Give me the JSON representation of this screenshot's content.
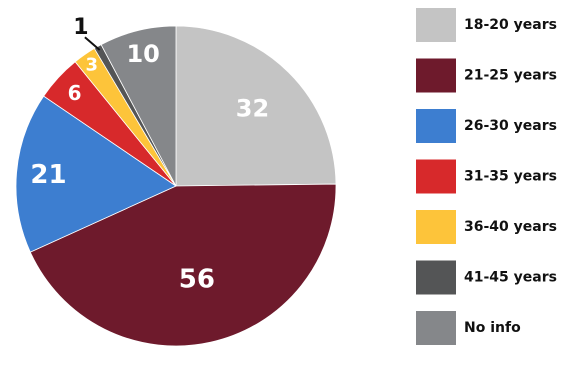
{
  "chart_data": {
    "type": "pie",
    "legend_position": "right",
    "slices": [
      {
        "label": "18-20 years",
        "value": 32,
        "color": "#c4c4c4"
      },
      {
        "label": "21-25 years",
        "value": 56,
        "color": "#6e1a2c"
      },
      {
        "label": "26-30 years",
        "value": 21,
        "color": "#3d7ed0"
      },
      {
        "label": "31-35 years",
        "value": 6,
        "color": "#d7292b"
      },
      {
        "label": "36-40 years",
        "value": 3,
        "color": "#fdc43a"
      },
      {
        "label": "41-45 years",
        "value": 1,
        "color": "#545556"
      },
      {
        "label": "No info",
        "value": 10,
        "color": "#85878a"
      }
    ]
  }
}
